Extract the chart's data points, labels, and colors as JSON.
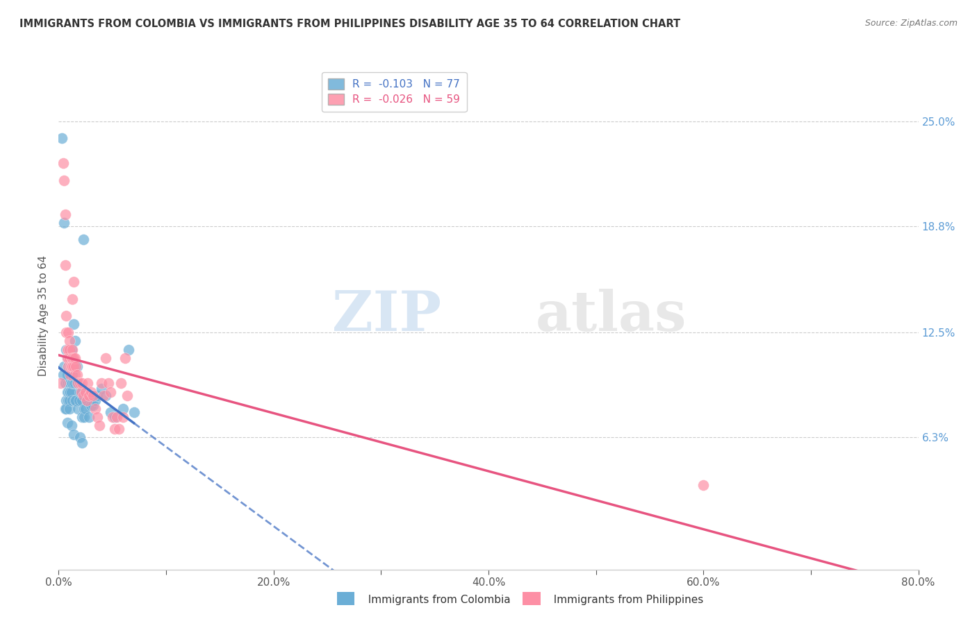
{
  "title": "IMMIGRANTS FROM COLOMBIA VS IMMIGRANTS FROM PHILIPPINES DISABILITY AGE 35 TO 64 CORRELATION CHART",
  "source": "Source: ZipAtlas.com",
  "ylabel": "Disability Age 35 to 64",
  "ytick_labels": [
    "25.0%",
    "18.8%",
    "12.5%",
    "6.3%"
  ],
  "ytick_values": [
    0.25,
    0.188,
    0.125,
    0.063
  ],
  "xlim": [
    0.0,
    0.8
  ],
  "ylim": [
    -0.015,
    0.285
  ],
  "colombia_color": "#6baed6",
  "philippines_color": "#fd8fa5",
  "colombia_line_color": "#4472c4",
  "philippines_line_color": "#e75480",
  "colombia_R": -0.103,
  "colombia_N": 77,
  "philippines_R": -0.026,
  "philippines_N": 59,
  "watermark_zip": "ZIP",
  "watermark_atlas": "atlas",
  "colombia_scatter": [
    [
      0.005,
      0.19
    ],
    [
      0.005,
      0.105
    ],
    [
      0.006,
      0.095
    ],
    [
      0.006,
      0.08
    ],
    [
      0.007,
      0.115
    ],
    [
      0.007,
      0.095
    ],
    [
      0.007,
      0.085
    ],
    [
      0.007,
      0.08
    ],
    [
      0.008,
      0.11
    ],
    [
      0.008,
      0.1
    ],
    [
      0.008,
      0.095
    ],
    [
      0.008,
      0.09
    ],
    [
      0.009,
      0.11
    ],
    [
      0.009,
      0.105
    ],
    [
      0.009,
      0.1
    ],
    [
      0.009,
      0.095
    ],
    [
      0.009,
      0.09
    ],
    [
      0.009,
      0.085
    ],
    [
      0.01,
      0.115
    ],
    [
      0.01,
      0.11
    ],
    [
      0.01,
      0.1
    ],
    [
      0.01,
      0.095
    ],
    [
      0.01,
      0.09
    ],
    [
      0.01,
      0.085
    ],
    [
      0.01,
      0.08
    ],
    [
      0.011,
      0.105
    ],
    [
      0.011,
      0.1
    ],
    [
      0.011,
      0.095
    ],
    [
      0.011,
      0.09
    ],
    [
      0.012,
      0.115
    ],
    [
      0.012,
      0.11
    ],
    [
      0.012,
      0.1
    ],
    [
      0.012,
      0.095
    ],
    [
      0.012,
      0.09
    ],
    [
      0.013,
      0.108
    ],
    [
      0.013,
      0.1
    ],
    [
      0.013,
      0.095
    ],
    [
      0.013,
      0.085
    ],
    [
      0.014,
      0.13
    ],
    [
      0.014,
      0.105
    ],
    [
      0.014,
      0.095
    ],
    [
      0.015,
      0.12
    ],
    [
      0.015,
      0.095
    ],
    [
      0.015,
      0.085
    ],
    [
      0.016,
      0.085
    ],
    [
      0.017,
      0.105
    ],
    [
      0.017,
      0.095
    ],
    [
      0.018,
      0.08
    ],
    [
      0.019,
      0.085
    ],
    [
      0.02,
      0.09
    ],
    [
      0.021,
      0.09
    ],
    [
      0.022,
      0.085
    ],
    [
      0.022,
      0.075
    ],
    [
      0.024,
      0.08
    ],
    [
      0.024,
      0.075
    ],
    [
      0.025,
      0.08
    ],
    [
      0.026,
      0.085
    ],
    [
      0.028,
      0.075
    ],
    [
      0.03,
      0.082
    ],
    [
      0.032,
      0.082
    ],
    [
      0.034,
      0.085
    ],
    [
      0.036,
      0.088
    ],
    [
      0.04,
      0.092
    ],
    [
      0.044,
      0.088
    ],
    [
      0.048,
      0.078
    ],
    [
      0.052,
      0.075
    ],
    [
      0.06,
      0.08
    ],
    [
      0.065,
      0.115
    ],
    [
      0.07,
      0.078
    ],
    [
      0.003,
      0.24
    ],
    [
      0.023,
      0.18
    ],
    [
      0.004,
      0.1
    ],
    [
      0.008,
      0.072
    ],
    [
      0.012,
      0.07
    ],
    [
      0.014,
      0.065
    ],
    [
      0.02,
      0.063
    ],
    [
      0.022,
      0.06
    ]
  ],
  "philippines_scatter": [
    [
      0.004,
      0.225
    ],
    [
      0.005,
      0.215
    ],
    [
      0.006,
      0.195
    ],
    [
      0.006,
      0.165
    ],
    [
      0.007,
      0.135
    ],
    [
      0.007,
      0.125
    ],
    [
      0.008,
      0.115
    ],
    [
      0.008,
      0.11
    ],
    [
      0.009,
      0.125
    ],
    [
      0.009,
      0.115
    ],
    [
      0.009,
      0.11
    ],
    [
      0.009,
      0.105
    ],
    [
      0.01,
      0.12
    ],
    [
      0.01,
      0.115
    ],
    [
      0.01,
      0.11
    ],
    [
      0.011,
      0.105
    ],
    [
      0.011,
      0.1
    ],
    [
      0.012,
      0.11
    ],
    [
      0.012,
      0.105
    ],
    [
      0.013,
      0.115
    ],
    [
      0.013,
      0.11
    ],
    [
      0.013,
      0.105
    ],
    [
      0.014,
      0.11
    ],
    [
      0.014,
      0.105
    ],
    [
      0.015,
      0.11
    ],
    [
      0.015,
      0.1
    ],
    [
      0.016,
      0.105
    ],
    [
      0.017,
      0.1
    ],
    [
      0.018,
      0.095
    ],
    [
      0.02,
      0.095
    ],
    [
      0.021,
      0.09
    ],
    [
      0.022,
      0.095
    ],
    [
      0.023,
      0.088
    ],
    [
      0.025,
      0.09
    ],
    [
      0.026,
      0.085
    ],
    [
      0.027,
      0.095
    ],
    [
      0.028,
      0.088
    ],
    [
      0.03,
      0.09
    ],
    [
      0.032,
      0.088
    ],
    [
      0.034,
      0.08
    ],
    [
      0.036,
      0.075
    ],
    [
      0.038,
      0.07
    ],
    [
      0.04,
      0.095
    ],
    [
      0.042,
      0.088
    ],
    [
      0.044,
      0.11
    ],
    [
      0.046,
      0.095
    ],
    [
      0.048,
      0.09
    ],
    [
      0.05,
      0.075
    ],
    [
      0.052,
      0.068
    ],
    [
      0.054,
      0.075
    ],
    [
      0.056,
      0.068
    ],
    [
      0.058,
      0.095
    ],
    [
      0.06,
      0.075
    ],
    [
      0.062,
      0.11
    ],
    [
      0.064,
      0.088
    ],
    [
      0.002,
      0.095
    ],
    [
      0.6,
      0.035
    ],
    [
      0.014,
      0.155
    ],
    [
      0.013,
      0.145
    ]
  ]
}
